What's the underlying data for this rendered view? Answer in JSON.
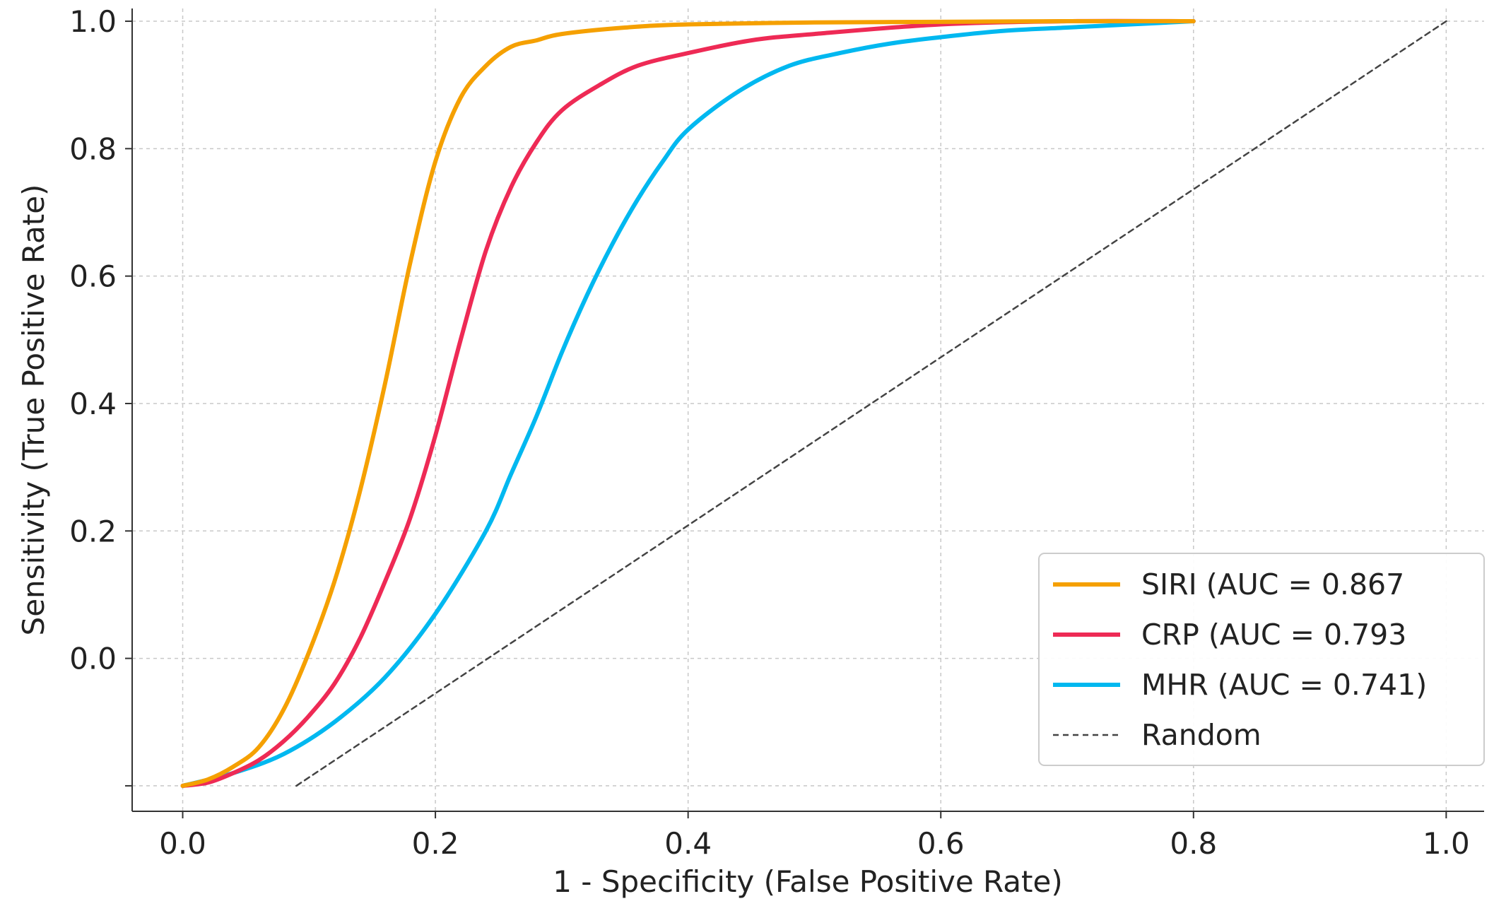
{
  "chart_data": {
    "type": "line",
    "title": "",
    "xlabel": "1 - Specificity (False Positive Rate)",
    "ylabel": "Sensitivity (True Positive Rate)",
    "xlim": [
      -0.04,
      1.03
    ],
    "ylim": [
      -0.24,
      1.02
    ],
    "x_ticks": [
      {
        "value": 0.0,
        "label": "0.0"
      },
      {
        "value": 0.2,
        "label": "0.2"
      },
      {
        "value": 0.4,
        "label": "0.4"
      },
      {
        "value": 0.6,
        "label": "0.6"
      },
      {
        "value": 0.8,
        "label": "0.8"
      },
      {
        "value": 1.0,
        "label": "1.0"
      }
    ],
    "y_ticks": [
      {
        "value": -0.2,
        "label": ""
      },
      {
        "value": 0.0,
        "label": "0.0"
      },
      {
        "value": 0.2,
        "label": "0.2"
      },
      {
        "value": 0.4,
        "label": "0.4"
      },
      {
        "value": 0.6,
        "label": "0.6"
      },
      {
        "value": 0.8,
        "label": "0.8"
      },
      {
        "value": 1.0,
        "label": "1.0"
      }
    ],
    "grid": true,
    "legend_position": "lower-right",
    "series": [
      {
        "name": "SIRI (AUC = 0.867",
        "color": "#F5A000",
        "style": "solid",
        "x": [
          0.0,
          0.02,
          0.04,
          0.06,
          0.08,
          0.1,
          0.12,
          0.14,
          0.16,
          0.18,
          0.2,
          0.22,
          0.24,
          0.26,
          0.28,
          0.3,
          0.35,
          0.4,
          0.5,
          0.6,
          0.7,
          0.8
        ],
        "y": [
          -0.2,
          -0.19,
          -0.17,
          -0.14,
          -0.08,
          0.01,
          0.12,
          0.26,
          0.43,
          0.62,
          0.78,
          0.88,
          0.93,
          0.96,
          0.97,
          0.98,
          0.99,
          0.995,
          0.998,
          0.999,
          1.0,
          1.0
        ]
      },
      {
        "name": "CRP (AUC = 0.793",
        "color": "#EE2A55",
        "style": "solid",
        "x": [
          0.0,
          0.02,
          0.04,
          0.06,
          0.08,
          0.1,
          0.12,
          0.14,
          0.16,
          0.18,
          0.2,
          0.22,
          0.24,
          0.26,
          0.28,
          0.3,
          0.33,
          0.36,
          0.4,
          0.45,
          0.5,
          0.6,
          0.7,
          0.8
        ],
        "y": [
          -0.2,
          -0.195,
          -0.18,
          -0.16,
          -0.13,
          -0.09,
          -0.04,
          0.03,
          0.12,
          0.22,
          0.35,
          0.5,
          0.64,
          0.74,
          0.81,
          0.86,
          0.9,
          0.93,
          0.95,
          0.97,
          0.98,
          0.995,
          1.0,
          1.0
        ]
      },
      {
        "name": "MHR (AUC = 0.741)",
        "color": "#00B8F0",
        "style": "solid",
        "x": [
          0.0,
          0.04,
          0.08,
          0.12,
          0.16,
          0.2,
          0.24,
          0.26,
          0.28,
          0.3,
          0.32,
          0.34,
          0.36,
          0.38,
          0.4,
          0.44,
          0.48,
          0.52,
          0.56,
          0.6,
          0.65,
          0.7,
          0.75,
          0.8
        ],
        "y": [
          -0.2,
          -0.18,
          -0.15,
          -0.1,
          -0.03,
          0.07,
          0.2,
          0.29,
          0.38,
          0.48,
          0.57,
          0.65,
          0.72,
          0.78,
          0.83,
          0.89,
          0.93,
          0.95,
          0.965,
          0.975,
          0.985,
          0.99,
          0.995,
          1.0
        ]
      },
      {
        "name": "Random",
        "color": "#444444",
        "style": "dashed",
        "x": [
          0.09,
          1.0
        ],
        "y": [
          -0.2,
          1.0
        ]
      }
    ]
  }
}
